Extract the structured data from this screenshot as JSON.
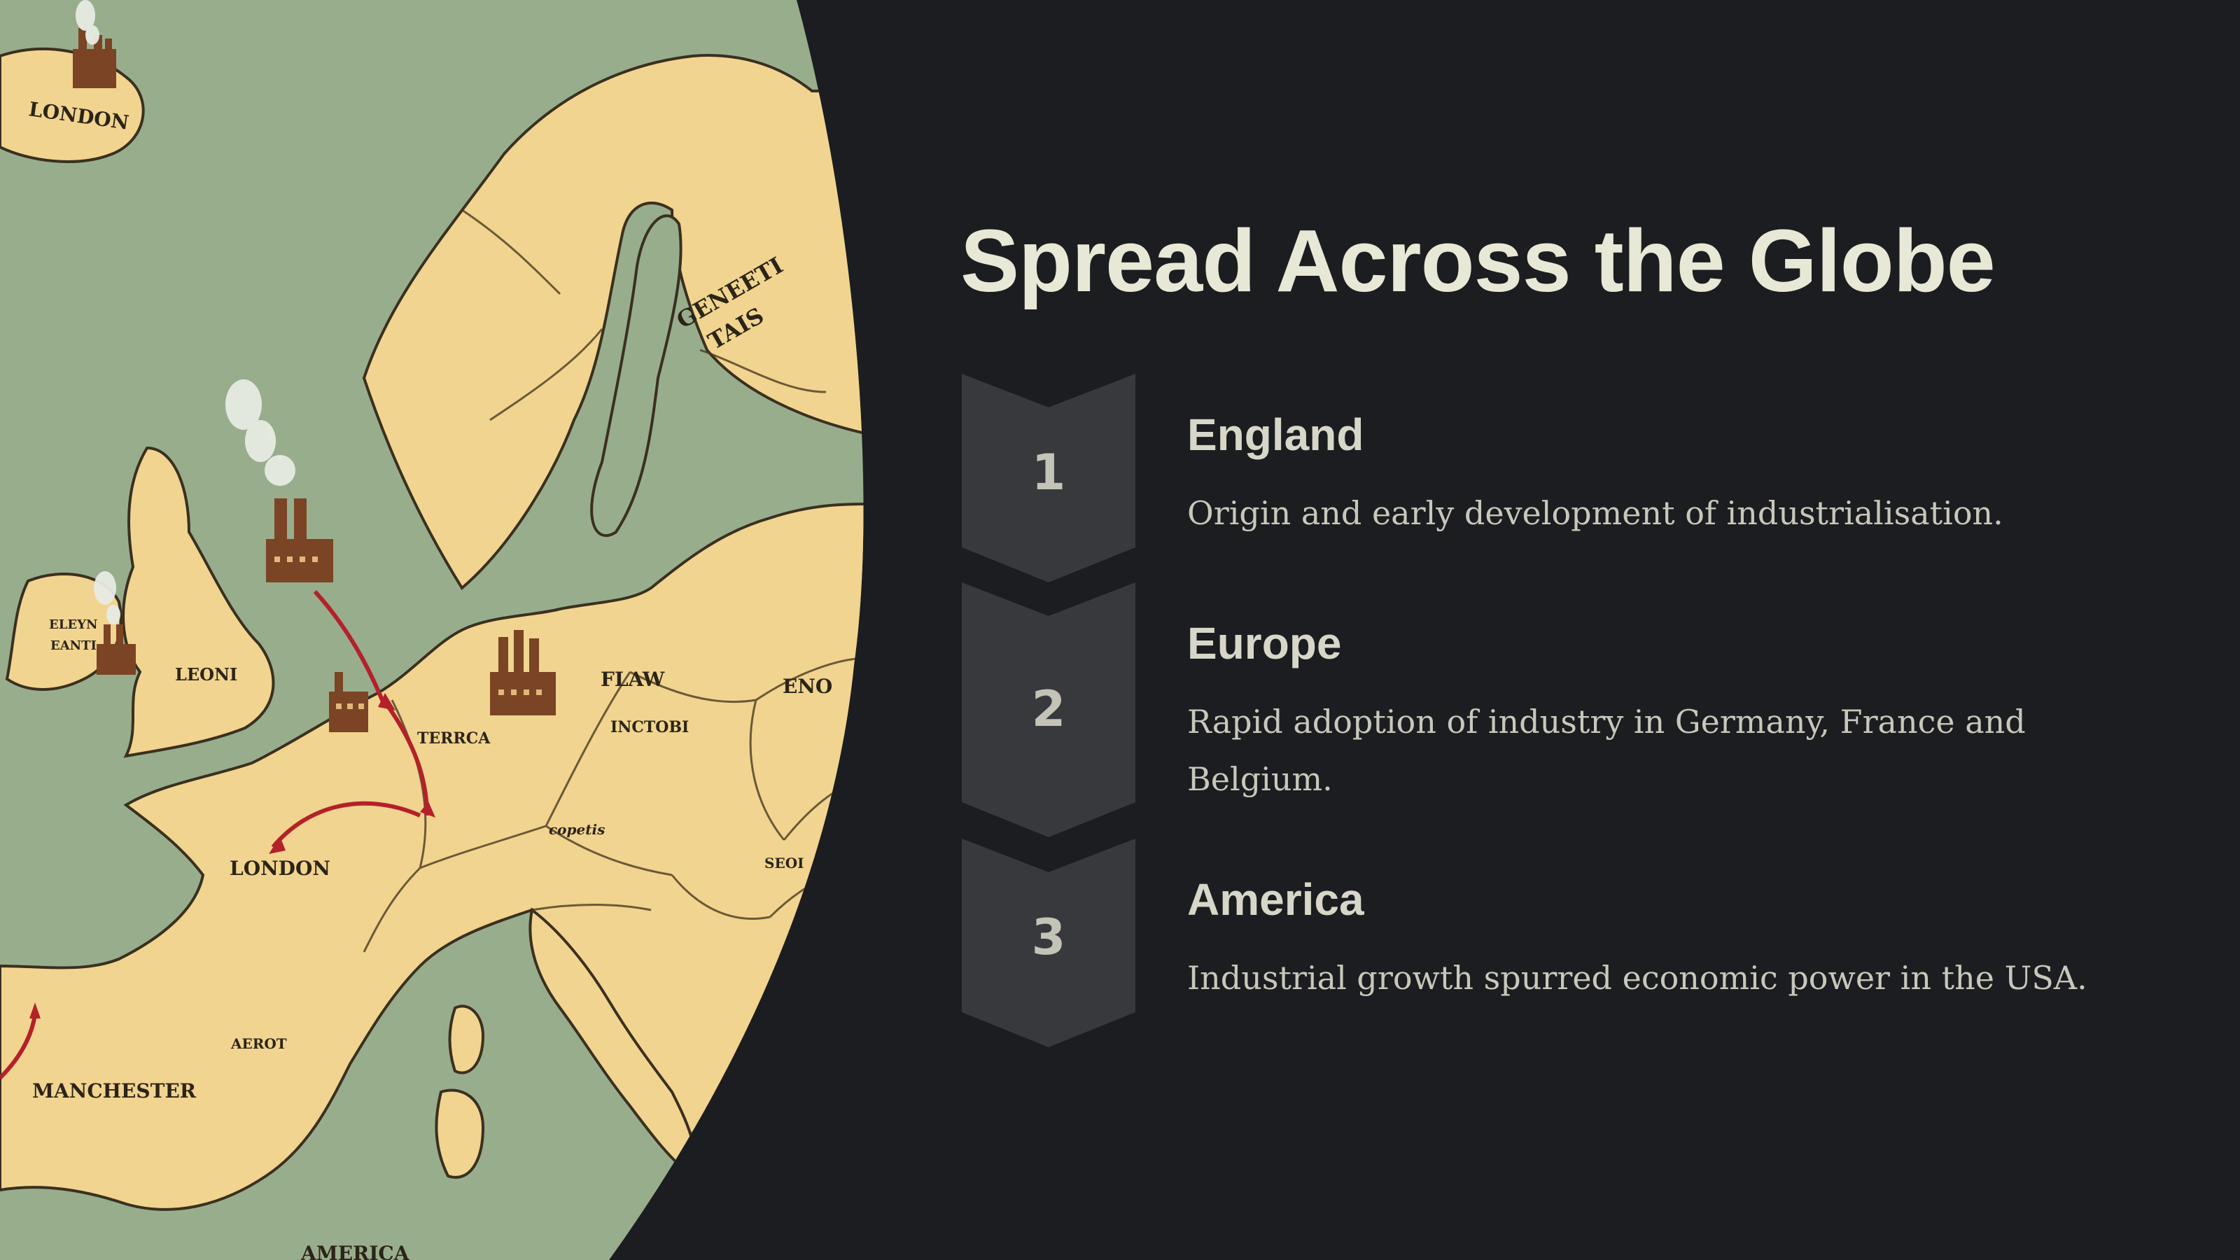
{
  "title": "Spread Across the Globe",
  "colors": {
    "background": "#1c1d20",
    "title": "#e7e8d6",
    "marker": "#38393c",
    "sea": "#98ad8c",
    "land": "#f1d48f",
    "arrow": "#b3212a"
  },
  "map": {
    "labels": [
      "LONDON",
      "GENEETI TAIS",
      "LEONI",
      "ELEYN EANTI",
      "FLAW",
      "TERRCA",
      "INCTOBI",
      "ENO",
      "LONDON",
      "copetis",
      "AEROT",
      "MANCHESTER",
      "AMERICA",
      "SEOI"
    ],
    "icons": [
      "factory-icon",
      "smoke-icon",
      "arrow-icon"
    ]
  },
  "steps": [
    {
      "number": "1",
      "heading": "England",
      "description": "Origin and early development of industrialisation."
    },
    {
      "number": "2",
      "heading": "Europe",
      "description": "Rapid adoption of industry in Germany, France and Belgium."
    },
    {
      "number": "3",
      "heading": "America",
      "description": "Industrial growth spurred economic power in the USA."
    }
  ]
}
